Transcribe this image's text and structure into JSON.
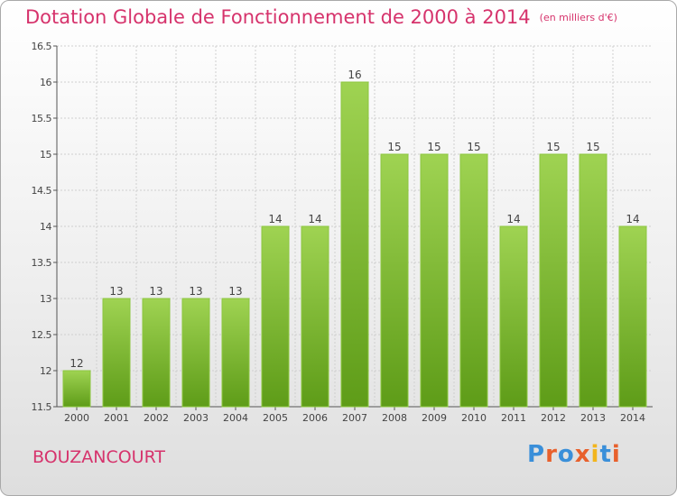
{
  "title": "Dotation Globale de Fonctionnement de 2000 à 2014",
  "unit_note": "(en milliers d'€)",
  "commune": "BOUZANCOURT",
  "logo": {
    "text": "Proxiti",
    "letter_colors": [
      "#3a8fd9",
      "#e8602c",
      "#3a8fd9",
      "#e8602c",
      "#f2b51d",
      "#3a8fd9",
      "#e8602c"
    ]
  },
  "colors": {
    "bar_light": "#9fd352",
    "bar_dark": "#5e9c18",
    "title": "#d6336c",
    "grid": "#cfcfcf"
  },
  "chart_data": {
    "type": "bar",
    "title": "Dotation Globale de Fonctionnement de 2000 à 2014",
    "xlabel": "",
    "ylabel": "",
    "ylim": [
      11.5,
      16.5
    ],
    "yticks": [
      "11.5",
      "12",
      "12.5",
      "13",
      "13.5",
      "14",
      "14.5",
      "15",
      "15.5",
      "16",
      "16.5"
    ],
    "ytick_values": [
      11.5,
      12,
      12.5,
      13,
      13.5,
      14,
      14.5,
      15,
      15.5,
      16,
      16.5
    ],
    "grid": true,
    "categories": [
      "2000",
      "2001",
      "2002",
      "2003",
      "2004",
      "2005",
      "2006",
      "2007",
      "2008",
      "2009",
      "2010",
      "2011",
      "2012",
      "2013",
      "2014"
    ],
    "values": [
      12,
      13,
      13,
      13,
      13,
      14,
      14,
      16,
      15,
      15,
      15,
      14,
      15,
      15,
      14
    ],
    "labels": [
      "12",
      "13",
      "13",
      "13",
      "13",
      "14",
      "14",
      "16",
      "15",
      "15",
      "15",
      "14",
      "15",
      "15",
      "14"
    ]
  }
}
